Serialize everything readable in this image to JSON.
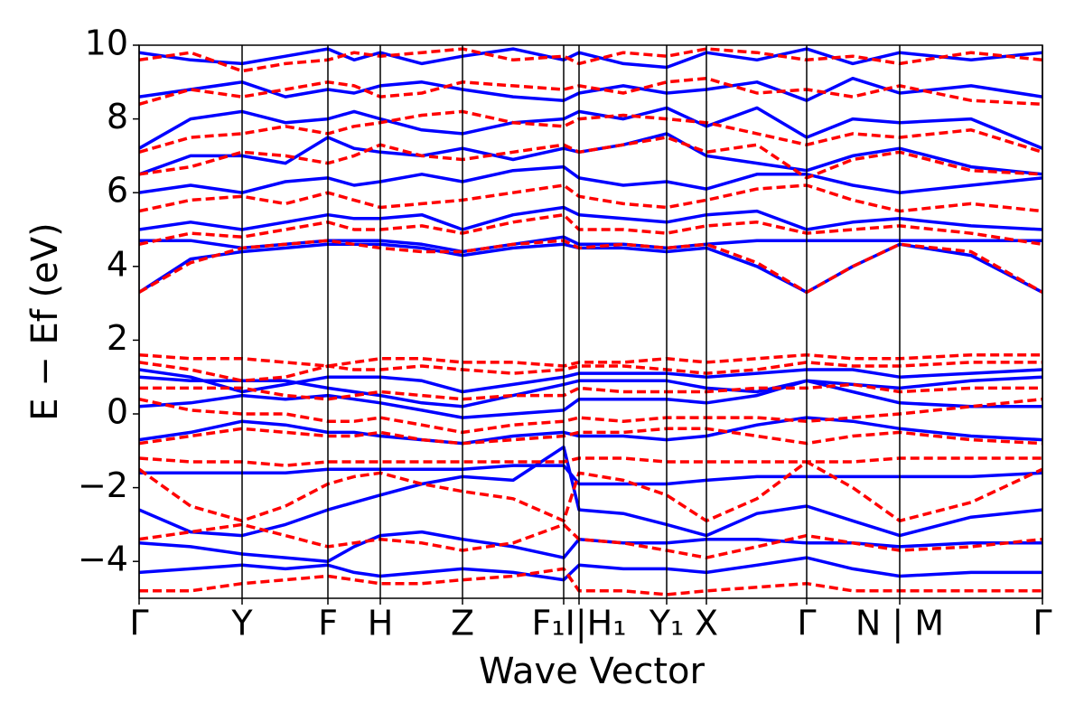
{
  "chart_data": {
    "type": "line",
    "xlabel": "Wave Vector",
    "ylabel": "E − Ef (eV)",
    "xlim": [
      0,
      10
    ],
    "ylim": [
      -5,
      10
    ],
    "xticks": [
      {
        "value": 0,
        "label": "Γ"
      },
      {
        "value": 1.14,
        "label": "Y"
      },
      {
        "value": 2.09,
        "label": "F"
      },
      {
        "value": 2.67,
        "label": "H"
      },
      {
        "value": 3.58,
        "label": "Z"
      },
      {
        "value": 4.7,
        "label": null
      },
      {
        "value": 4.87,
        "label": "F₁I|H₁"
      },
      {
        "value": 5.84,
        "label": "Y₁"
      },
      {
        "value": 6.28,
        "label": "X"
      },
      {
        "value": 7.39,
        "label": "Γ"
      },
      {
        "value": 8.42,
        "label": "N | M"
      },
      {
        "value": 10,
        "label": "Γ"
      }
    ],
    "yticks": [
      {
        "value": -4,
        "label": "−4"
      },
      {
        "value": -2,
        "label": "−2"
      },
      0,
      2,
      4,
      6,
      8,
      10
    ],
    "x": [
      0,
      0.57,
      1.14,
      1.62,
      2.09,
      2.38,
      2.67,
      3.13,
      3.58,
      4.14,
      4.7,
      4.87,
      5.36,
      5.84,
      6.28,
      6.84,
      7.39,
      7.9,
      8.42,
      9.21,
      10
    ],
    "series": [
      {
        "color": "#0000ff",
        "dashed": false,
        "values": [
          3.3,
          4.2,
          4.4,
          4.5,
          4.6,
          4.6,
          4.6,
          4.5,
          4.3,
          4.5,
          4.6,
          4.5,
          4.5,
          4.4,
          4.5,
          4.0,
          3.3,
          4.0,
          4.6,
          4.3,
          3.3
        ]
      },
      {
        "color": "#0000ff",
        "dashed": false,
        "values": [
          4.7,
          4.7,
          4.5,
          4.6,
          4.7,
          4.7,
          4.7,
          4.6,
          4.4,
          4.6,
          4.8,
          4.6,
          4.6,
          4.5,
          4.6,
          4.7,
          4.7,
          4.7,
          4.7,
          4.7,
          4.7
        ]
      },
      {
        "color": "#0000ff",
        "dashed": false,
        "values": [
          5.0,
          5.2,
          5.0,
          5.2,
          5.4,
          5.3,
          5.3,
          5.4,
          5.0,
          5.4,
          5.6,
          5.4,
          5.3,
          5.2,
          5.4,
          5.5,
          5.0,
          5.2,
          5.3,
          5.1,
          5.0
        ]
      },
      {
        "color": "#0000ff",
        "dashed": false,
        "values": [
          6.0,
          6.2,
          6.0,
          6.3,
          6.4,
          6.2,
          6.3,
          6.5,
          6.3,
          6.6,
          6.7,
          6.4,
          6.2,
          6.3,
          6.1,
          6.5,
          6.5,
          6.2,
          6.0,
          6.2,
          6.4
        ]
      },
      {
        "color": "#0000ff",
        "dashed": false,
        "values": [
          6.5,
          7.0,
          7.0,
          6.8,
          7.5,
          7.2,
          7.1,
          7.0,
          7.2,
          6.9,
          7.2,
          7.1,
          7.3,
          7.6,
          7.0,
          6.8,
          6.6,
          7.0,
          7.2,
          6.7,
          6.5
        ]
      },
      {
        "color": "#0000ff",
        "dashed": false,
        "values": [
          7.2,
          8.0,
          8.2,
          7.9,
          8.0,
          8.2,
          8.0,
          7.7,
          7.6,
          7.9,
          8.0,
          8.2,
          8.0,
          8.3,
          7.8,
          8.3,
          7.5,
          8.0,
          7.9,
          8.0,
          7.2
        ]
      },
      {
        "color": "#0000ff",
        "dashed": false,
        "values": [
          8.6,
          8.8,
          9.0,
          8.6,
          8.8,
          8.7,
          8.9,
          9.0,
          8.8,
          8.6,
          8.5,
          8.7,
          8.9,
          8.7,
          8.8,
          9.0,
          8.5,
          9.1,
          8.7,
          8.9,
          8.6
        ]
      },
      {
        "color": "#0000ff",
        "dashed": false,
        "values": [
          9.8,
          9.6,
          9.5,
          9.7,
          9.9,
          9.6,
          9.8,
          9.5,
          9.7,
          9.9,
          9.6,
          9.8,
          9.5,
          9.4,
          9.8,
          9.6,
          9.9,
          9.5,
          9.8,
          9.6,
          9.8
        ]
      },
      {
        "color": "#0000ff",
        "dashed": false,
        "values": [
          1.2,
          1.0,
          0.6,
          0.8,
          1.0,
          1.0,
          1.0,
          0.9,
          0.6,
          0.8,
          1.0,
          1.1,
          1.1,
          1.1,
          1.0,
          1.1,
          1.2,
          1.2,
          1.0,
          1.1,
          1.2
        ]
      },
      {
        "color": "#0000ff",
        "dashed": false,
        "values": [
          1.0,
          0.9,
          0.9,
          0.9,
          0.7,
          0.6,
          0.5,
          0.3,
          0.2,
          0.5,
          0.8,
          0.9,
          0.9,
          0.9,
          0.7,
          0.6,
          0.9,
          0.8,
          0.7,
          0.9,
          1.0
        ]
      },
      {
        "color": "#0000ff",
        "dashed": false,
        "values": [
          0.2,
          0.3,
          0.5,
          0.4,
          0.5,
          0.4,
          0.3,
          0.1,
          -0.1,
          0.0,
          0.1,
          0.4,
          0.4,
          0.4,
          0.3,
          0.5,
          0.9,
          0.6,
          0.3,
          0.2,
          0.2
        ]
      },
      {
        "color": "#0000ff",
        "dashed": false,
        "values": [
          -0.7,
          -0.5,
          -0.2,
          -0.3,
          -0.5,
          -0.5,
          -0.6,
          -0.7,
          -0.8,
          -0.6,
          -0.5,
          -0.6,
          -0.6,
          -0.7,
          -0.6,
          -0.3,
          -0.1,
          -0.2,
          -0.4,
          -0.6,
          -0.7
        ]
      },
      {
        "color": "#0000ff",
        "dashed": false,
        "values": [
          -1.6,
          -1.6,
          -1.6,
          -1.6,
          -1.5,
          -1.5,
          -1.5,
          -1.5,
          -1.5,
          -1.4,
          -1.4,
          -1.9,
          -1.9,
          -1.9,
          -1.8,
          -1.7,
          -1.7,
          -1.7,
          -1.7,
          -1.7,
          -1.6
        ]
      },
      {
        "color": "#0000ff",
        "dashed": false,
        "values": [
          -2.6,
          -3.2,
          -3.3,
          -3.0,
          -2.6,
          -2.4,
          -2.2,
          -1.9,
          -1.7,
          -1.8,
          -0.9,
          -2.6,
          -2.7,
          -3.0,
          -3.3,
          -2.7,
          -2.5,
          -2.9,
          -3.3,
          -2.8,
          -2.6
        ]
      },
      {
        "color": "#0000ff",
        "dashed": false,
        "values": [
          -3.5,
          -3.6,
          -3.8,
          -3.9,
          -4.0,
          -3.6,
          -3.3,
          -3.2,
          -3.4,
          -3.6,
          -3.9,
          -3.4,
          -3.5,
          -3.5,
          -3.4,
          -3.4,
          -3.5,
          -3.5,
          -3.6,
          -3.5,
          -3.5
        ]
      },
      {
        "color": "#0000ff",
        "dashed": false,
        "values": [
          -4.3,
          -4.2,
          -4.1,
          -4.2,
          -4.1,
          -4.3,
          -4.4,
          -4.3,
          -4.2,
          -4.3,
          -4.5,
          -4.1,
          -4.2,
          -4.2,
          -4.3,
          -4.1,
          -3.9,
          -4.2,
          -4.4,
          -4.3,
          -4.3
        ]
      },
      {
        "color": "#ff0000",
        "dashed": true,
        "values": [
          3.3,
          4.1,
          4.5,
          4.6,
          4.7,
          4.6,
          4.5,
          4.4,
          4.4,
          4.6,
          4.7,
          4.5,
          4.6,
          4.5,
          4.6,
          4.1,
          3.3,
          4.0,
          4.6,
          4.4,
          3.3
        ]
      },
      {
        "color": "#ff0000",
        "dashed": true,
        "values": [
          4.6,
          4.9,
          4.8,
          5.0,
          5.2,
          5.0,
          5.0,
          5.1,
          4.9,
          5.2,
          5.4,
          5.0,
          5.0,
          4.9,
          5.1,
          5.2,
          4.9,
          5.0,
          5.1,
          4.9,
          4.6
        ]
      },
      {
        "color": "#ff0000",
        "dashed": true,
        "values": [
          5.5,
          5.8,
          5.9,
          5.7,
          6.0,
          5.8,
          5.6,
          5.7,
          5.8,
          6.0,
          6.2,
          5.9,
          5.7,
          5.6,
          5.8,
          6.1,
          6.2,
          5.8,
          5.5,
          5.7,
          5.5
        ]
      },
      {
        "color": "#ff0000",
        "dashed": true,
        "values": [
          6.5,
          6.7,
          7.1,
          7.0,
          6.8,
          7.0,
          7.3,
          7.0,
          6.9,
          7.1,
          7.3,
          7.1,
          7.3,
          7.5,
          7.1,
          7.3,
          6.4,
          6.9,
          7.1,
          6.6,
          6.5
        ]
      },
      {
        "color": "#ff0000",
        "dashed": true,
        "values": [
          7.1,
          7.5,
          7.6,
          7.8,
          7.6,
          7.8,
          7.9,
          8.1,
          8.2,
          7.9,
          7.8,
          8.0,
          8.1,
          8.0,
          7.9,
          7.6,
          7.3,
          7.6,
          7.5,
          7.7,
          7.1
        ]
      },
      {
        "color": "#ff0000",
        "dashed": true,
        "values": [
          8.4,
          8.8,
          8.6,
          8.8,
          9.0,
          8.9,
          8.6,
          8.7,
          9.0,
          8.9,
          8.8,
          8.9,
          8.7,
          9.0,
          9.1,
          8.7,
          8.8,
          8.6,
          8.9,
          8.5,
          8.4
        ]
      },
      {
        "color": "#ff0000",
        "dashed": true,
        "values": [
          9.6,
          9.8,
          9.3,
          9.5,
          9.6,
          9.8,
          9.7,
          9.8,
          9.9,
          9.6,
          9.7,
          9.5,
          9.8,
          9.7,
          9.9,
          9.8,
          9.6,
          9.7,
          9.5,
          9.8,
          9.6
        ]
      },
      {
        "color": "#ff0000",
        "dashed": true,
        "values": [
          1.6,
          1.5,
          1.5,
          1.4,
          1.3,
          1.4,
          1.5,
          1.5,
          1.4,
          1.4,
          1.3,
          1.4,
          1.4,
          1.5,
          1.4,
          1.5,
          1.6,
          1.5,
          1.5,
          1.6,
          1.6
        ]
      },
      {
        "color": "#ff0000",
        "dashed": true,
        "values": [
          1.4,
          1.2,
          0.9,
          1.0,
          1.3,
          1.2,
          1.2,
          1.3,
          1.2,
          1.1,
          1.2,
          1.3,
          1.3,
          1.2,
          1.1,
          1.2,
          1.4,
          1.3,
          1.3,
          1.4,
          1.4
        ]
      },
      {
        "color": "#ff0000",
        "dashed": true,
        "values": [
          0.7,
          0.7,
          0.7,
          0.5,
          0.4,
          0.5,
          0.6,
          0.5,
          0.4,
          0.5,
          0.5,
          0.7,
          0.6,
          0.6,
          0.6,
          0.7,
          0.7,
          0.8,
          0.6,
          0.7,
          0.7
        ]
      },
      {
        "color": "#ff0000",
        "dashed": true,
        "values": [
          0.4,
          0.1,
          0.0,
          0.0,
          -0.2,
          -0.2,
          -0.1,
          -0.3,
          -0.5,
          -0.3,
          -0.2,
          -0.1,
          -0.2,
          -0.1,
          -0.1,
          -0.1,
          -0.2,
          -0.1,
          0.0,
          0.2,
          0.4
        ]
      },
      {
        "color": "#ff0000",
        "dashed": true,
        "values": [
          -0.8,
          -0.6,
          -0.4,
          -0.5,
          -0.6,
          -0.6,
          -0.5,
          -0.7,
          -0.8,
          -0.7,
          -0.6,
          -0.5,
          -0.5,
          -0.4,
          -0.4,
          -0.6,
          -0.8,
          -0.6,
          -0.5,
          -0.7,
          -0.8
        ]
      },
      {
        "color": "#ff0000",
        "dashed": true,
        "values": [
          -1.2,
          -1.3,
          -1.3,
          -1.4,
          -1.3,
          -1.3,
          -1.3,
          -1.3,
          -1.3,
          -1.3,
          -1.3,
          -1.2,
          -1.2,
          -1.3,
          -1.3,
          -1.3,
          -1.3,
          -1.3,
          -1.2,
          -1.2,
          -1.2
        ]
      },
      {
        "color": "#ff0000",
        "dashed": true,
        "values": [
          -1.5,
          -2.5,
          -2.9,
          -2.5,
          -1.9,
          -1.7,
          -1.6,
          -1.9,
          -2.1,
          -2.3,
          -2.9,
          -1.6,
          -1.8,
          -2.2,
          -2.9,
          -2.3,
          -1.3,
          -2.0,
          -2.9,
          -2.4,
          -1.5
        ]
      },
      {
        "color": "#ff0000",
        "dashed": true,
        "values": [
          -3.4,
          -3.2,
          -3.0,
          -3.3,
          -3.6,
          -3.5,
          -3.4,
          -3.5,
          -3.7,
          -3.5,
          -3.0,
          -3.4,
          -3.5,
          -3.7,
          -3.9,
          -3.6,
          -3.3,
          -3.5,
          -3.7,
          -3.6,
          -3.4
        ]
      },
      {
        "color": "#ff0000",
        "dashed": true,
        "values": [
          -4.8,
          -4.8,
          -4.6,
          -4.5,
          -4.4,
          -4.5,
          -4.6,
          -4.6,
          -4.5,
          -4.4,
          -4.2,
          -4.8,
          -4.8,
          -4.9,
          -4.8,
          -4.7,
          -4.6,
          -4.8,
          -4.8,
          -4.8,
          -4.8
        ]
      }
    ]
  }
}
